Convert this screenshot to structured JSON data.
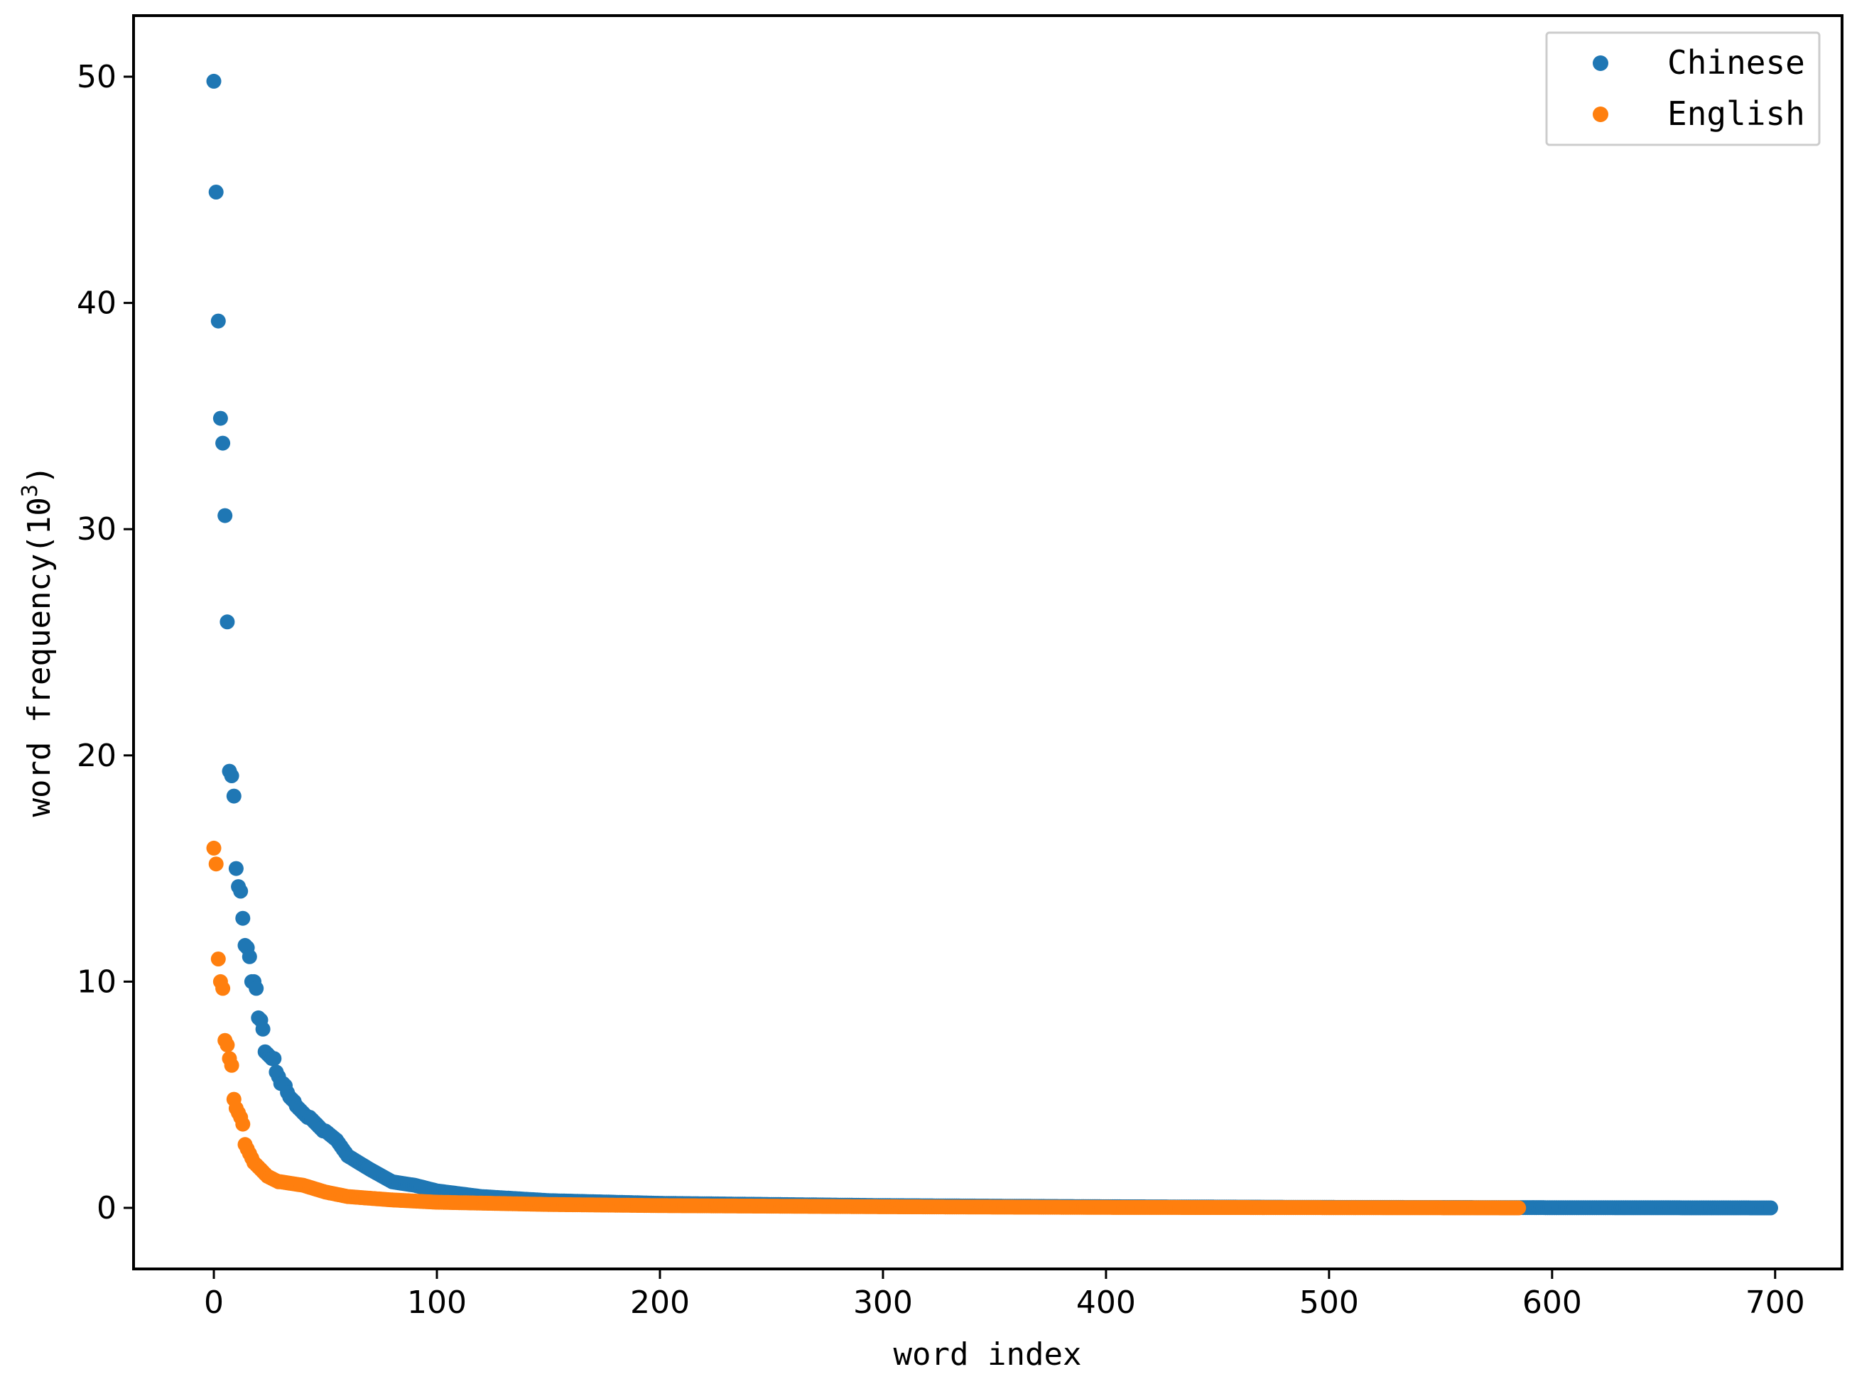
{
  "chart_data": {
    "type": "scatter",
    "title": "",
    "xlabel": "word index",
    "ylabel_main": "word frequency(10",
    "ylabel_exp": "3",
    "ylabel_close": ")",
    "xlim": [
      -36,
      730
    ],
    "ylim": [
      -2.7,
      52.7
    ],
    "xticks": [
      0,
      100,
      200,
      300,
      400,
      500,
      600,
      700
    ],
    "yticks": [
      0,
      10,
      20,
      30,
      40,
      50
    ],
    "grid": false,
    "legend_position": "top-right",
    "series": [
      {
        "name": "Chinese",
        "color": "#1f77b4",
        "count": 699,
        "head": [
          49.8,
          44.9,
          39.2,
          34.9,
          33.8,
          30.6,
          25.9,
          19.3,
          19.1,
          18.2,
          15.0,
          14.2,
          14.0,
          12.8,
          11.6,
          11.5,
          11.1,
          10.0,
          10.0,
          9.7,
          8.4,
          8.3,
          7.9,
          6.9,
          6.8,
          6.7,
          6.6,
          6.6,
          6.0,
          5.8,
          5.5,
          5.5,
          5.4,
          5.1,
          4.9,
          4.8,
          4.7,
          4.5,
          4.4,
          4.3,
          4.2,
          4.1,
          4.0,
          4.0,
          3.9,
          3.8,
          3.7,
          3.6,
          3.5,
          3.4
        ],
        "anchors": [
          [
            50,
            3.4
          ],
          [
            55,
            3.0
          ],
          [
            60,
            2.3
          ],
          [
            70,
            1.7
          ],
          [
            80,
            1.15
          ],
          [
            90,
            1.0
          ],
          [
            100,
            0.75
          ],
          [
            120,
            0.5
          ],
          [
            150,
            0.32
          ],
          [
            200,
            0.2
          ],
          [
            300,
            0.1
          ],
          [
            400,
            0.05
          ],
          [
            500,
            0.02
          ],
          [
            600,
            0.01
          ],
          [
            698,
            0.0
          ]
        ]
      },
      {
        "name": "English",
        "color": "#ff7f0e",
        "count": 586,
        "head": [
          15.9,
          15.2,
          11.0,
          10.0,
          9.7,
          7.4,
          7.2,
          6.6,
          6.3,
          4.8,
          4.4,
          4.2,
          4.0,
          3.7,
          2.8,
          2.6,
          2.4,
          2.2,
          2.0,
          1.9,
          1.8,
          1.7,
          1.6,
          1.5,
          1.4,
          1.35,
          1.3,
          1.25,
          1.2,
          1.15
        ],
        "anchors": [
          [
            30,
            1.15
          ],
          [
            40,
            1.0
          ],
          [
            50,
            0.7
          ],
          [
            60,
            0.5
          ],
          [
            80,
            0.35
          ],
          [
            100,
            0.25
          ],
          [
            150,
            0.15
          ],
          [
            200,
            0.1
          ],
          [
            300,
            0.05
          ],
          [
            400,
            0.02
          ],
          [
            500,
            0.01
          ],
          [
            585,
            0.0
          ]
        ]
      }
    ]
  }
}
